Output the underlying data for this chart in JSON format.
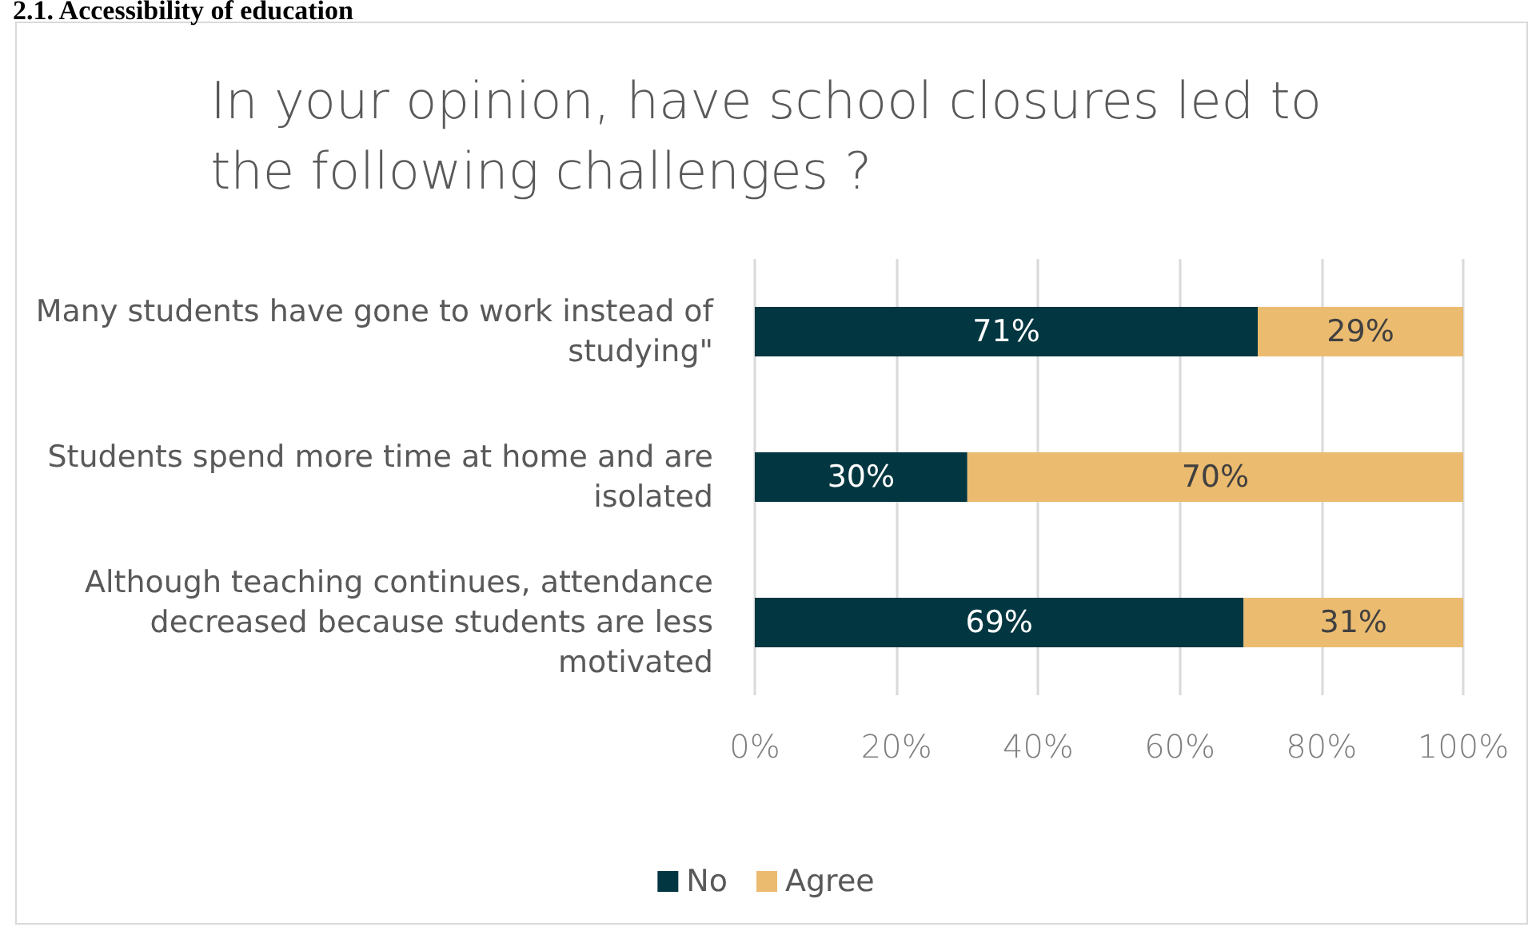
{
  "chart_data": {
    "type": "bar",
    "orientation": "horizontal",
    "stacked": true,
    "title": "In your opinion, have school closures led to the following challenges ?",
    "annotations": [
      "2.1. Accessibility of education"
    ],
    "categories": [
      "Many students have gone to work instead of studying\"",
      "Students spend more time at home and are isolated",
      "Although teaching continues, attendance decreased because students are less motivated"
    ],
    "series": [
      {
        "name": "No",
        "color": "#023741",
        "values": [
          71,
          30,
          69
        ],
        "value_labels": [
          "71%",
          "30%",
          "69%"
        ]
      },
      {
        "name": "Agree",
        "color": "#ebbb6f",
        "values": [
          29,
          70,
          31
        ],
        "value_labels": [
          "29%",
          "70%",
          "31%"
        ]
      }
    ],
    "xlim": [
      0,
      100
    ],
    "xticks": [
      {
        "value": 0,
        "label": "0%"
      },
      {
        "value": 20,
        "label": "20%"
      },
      {
        "value": 40,
        "label": "40%"
      },
      {
        "value": 60,
        "label": "60%"
      },
      {
        "value": 80,
        "label": "80%"
      },
      {
        "value": 100,
        "label": "100%"
      }
    ],
    "grid": "x",
    "legend": "bottom"
  }
}
